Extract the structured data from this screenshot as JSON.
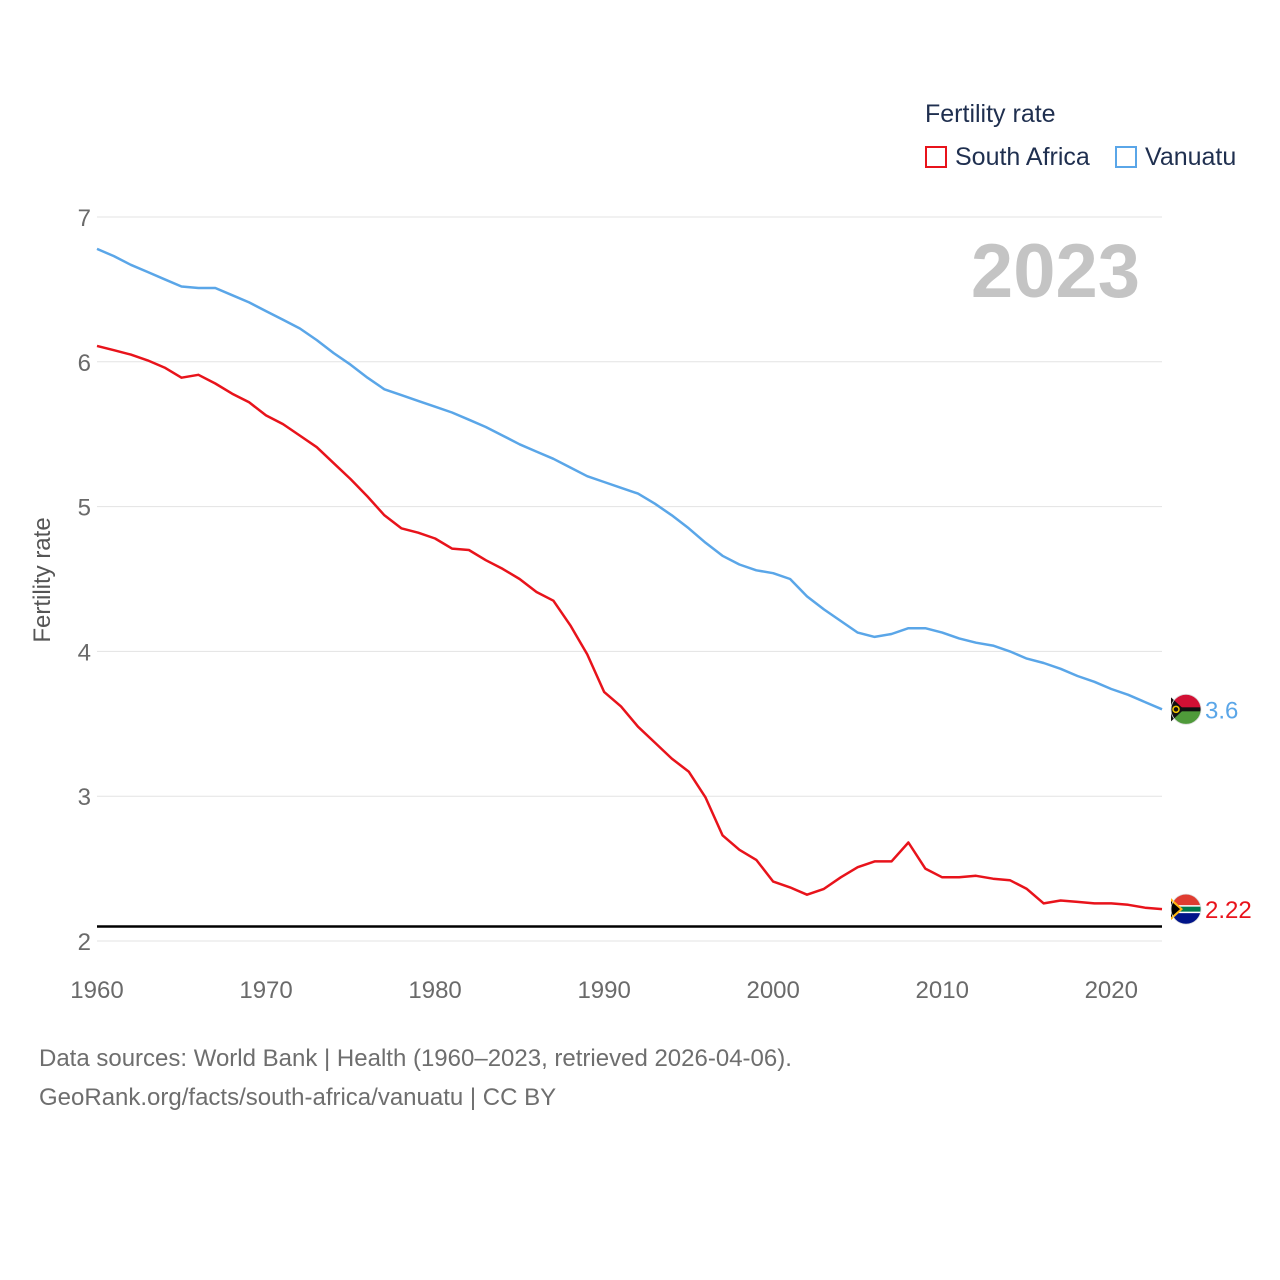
{
  "legend": {
    "title": "Fertility rate",
    "items": [
      {
        "name": "South Africa",
        "color": "#e8131b"
      },
      {
        "name": "Vanuatu",
        "color": "#5aa6e8"
      }
    ]
  },
  "year_label": "2023",
  "footer": {
    "line1": "Data sources: World Bank | Health (1960–2023, retrieved 2026-04-06).",
    "line2": "GeoRank.org/facts/south-africa/vanuatu | CC BY"
  },
  "chart_data": {
    "type": "line",
    "title": "",
    "xlabel": "",
    "ylabel": "Fertility rate",
    "xlim": [
      1960,
      2023
    ],
    "ylim": [
      2,
      7
    ],
    "yticks": [
      2,
      3,
      4,
      5,
      6,
      7
    ],
    "xticks": [
      1960,
      1970,
      1980,
      1990,
      2000,
      2010,
      2020
    ],
    "reference_line": {
      "value": 2.1,
      "color": "#000000"
    },
    "series": [
      {
        "name": "South Africa",
        "color": "#e8131b",
        "end_label": "2.22",
        "x": [
          1960,
          1961,
          1962,
          1963,
          1964,
          1965,
          1966,
          1967,
          1968,
          1969,
          1970,
          1971,
          1972,
          1973,
          1974,
          1975,
          1976,
          1977,
          1978,
          1979,
          1980,
          1981,
          1982,
          1983,
          1984,
          1985,
          1986,
          1987,
          1988,
          1989,
          1990,
          1991,
          1992,
          1993,
          1994,
          1995,
          1996,
          1997,
          1998,
          1999,
          2000,
          2001,
          2002,
          2003,
          2004,
          2005,
          2006,
          2007,
          2008,
          2009,
          2010,
          2011,
          2012,
          2013,
          2014,
          2015,
          2016,
          2017,
          2018,
          2019,
          2020,
          2021,
          2022,
          2023
        ],
        "values": [
          6.11,
          6.08,
          6.05,
          6.01,
          5.96,
          5.89,
          5.91,
          5.85,
          5.78,
          5.72,
          5.63,
          5.57,
          5.49,
          5.41,
          5.3,
          5.19,
          5.07,
          4.94,
          4.85,
          4.82,
          4.78,
          4.71,
          4.7,
          4.63,
          4.57,
          4.5,
          4.41,
          4.35,
          4.18,
          3.98,
          3.72,
          3.62,
          3.48,
          3.37,
          3.26,
          3.17,
          2.99,
          2.73,
          2.63,
          2.56,
          2.41,
          2.37,
          2.32,
          2.36,
          2.44,
          2.51,
          2.55,
          2.55,
          2.68,
          2.5,
          2.44,
          2.44,
          2.45,
          2.43,
          2.42,
          2.36,
          2.26,
          2.28,
          2.27,
          2.26,
          2.26,
          2.25,
          2.23,
          2.22
        ]
      },
      {
        "name": "Vanuatu",
        "color": "#5aa6e8",
        "end_label": "3.6",
        "x": [
          1960,
          1961,
          1962,
          1963,
          1964,
          1965,
          1966,
          1967,
          1968,
          1969,
          1970,
          1971,
          1972,
          1973,
          1974,
          1975,
          1976,
          1977,
          1978,
          1979,
          1980,
          1981,
          1982,
          1983,
          1984,
          1985,
          1986,
          1987,
          1988,
          1989,
          1990,
          1991,
          1992,
          1993,
          1994,
          1995,
          1996,
          1997,
          1998,
          1999,
          2000,
          2001,
          2002,
          2003,
          2004,
          2005,
          2006,
          2007,
          2008,
          2009,
          2010,
          2011,
          2012,
          2013,
          2014,
          2015,
          2016,
          2017,
          2018,
          2019,
          2020,
          2021,
          2022,
          2023
        ],
        "values": [
          6.78,
          6.73,
          6.67,
          6.62,
          6.57,
          6.52,
          6.51,
          6.51,
          6.46,
          6.41,
          6.35,
          6.29,
          6.23,
          6.15,
          6.06,
          5.98,
          5.89,
          5.81,
          5.77,
          5.73,
          5.69,
          5.65,
          5.6,
          5.55,
          5.49,
          5.43,
          5.38,
          5.33,
          5.27,
          5.21,
          5.17,
          5.13,
          5.09,
          5.02,
          4.94,
          4.85,
          4.75,
          4.66,
          4.6,
          4.56,
          4.54,
          4.5,
          4.38,
          4.29,
          4.21,
          4.13,
          4.1,
          4.12,
          4.16,
          4.16,
          4.13,
          4.09,
          4.06,
          4.04,
          4.0,
          3.95,
          3.92,
          3.88,
          3.83,
          3.79,
          3.74,
          3.7,
          3.65,
          3.6
        ]
      }
    ]
  }
}
